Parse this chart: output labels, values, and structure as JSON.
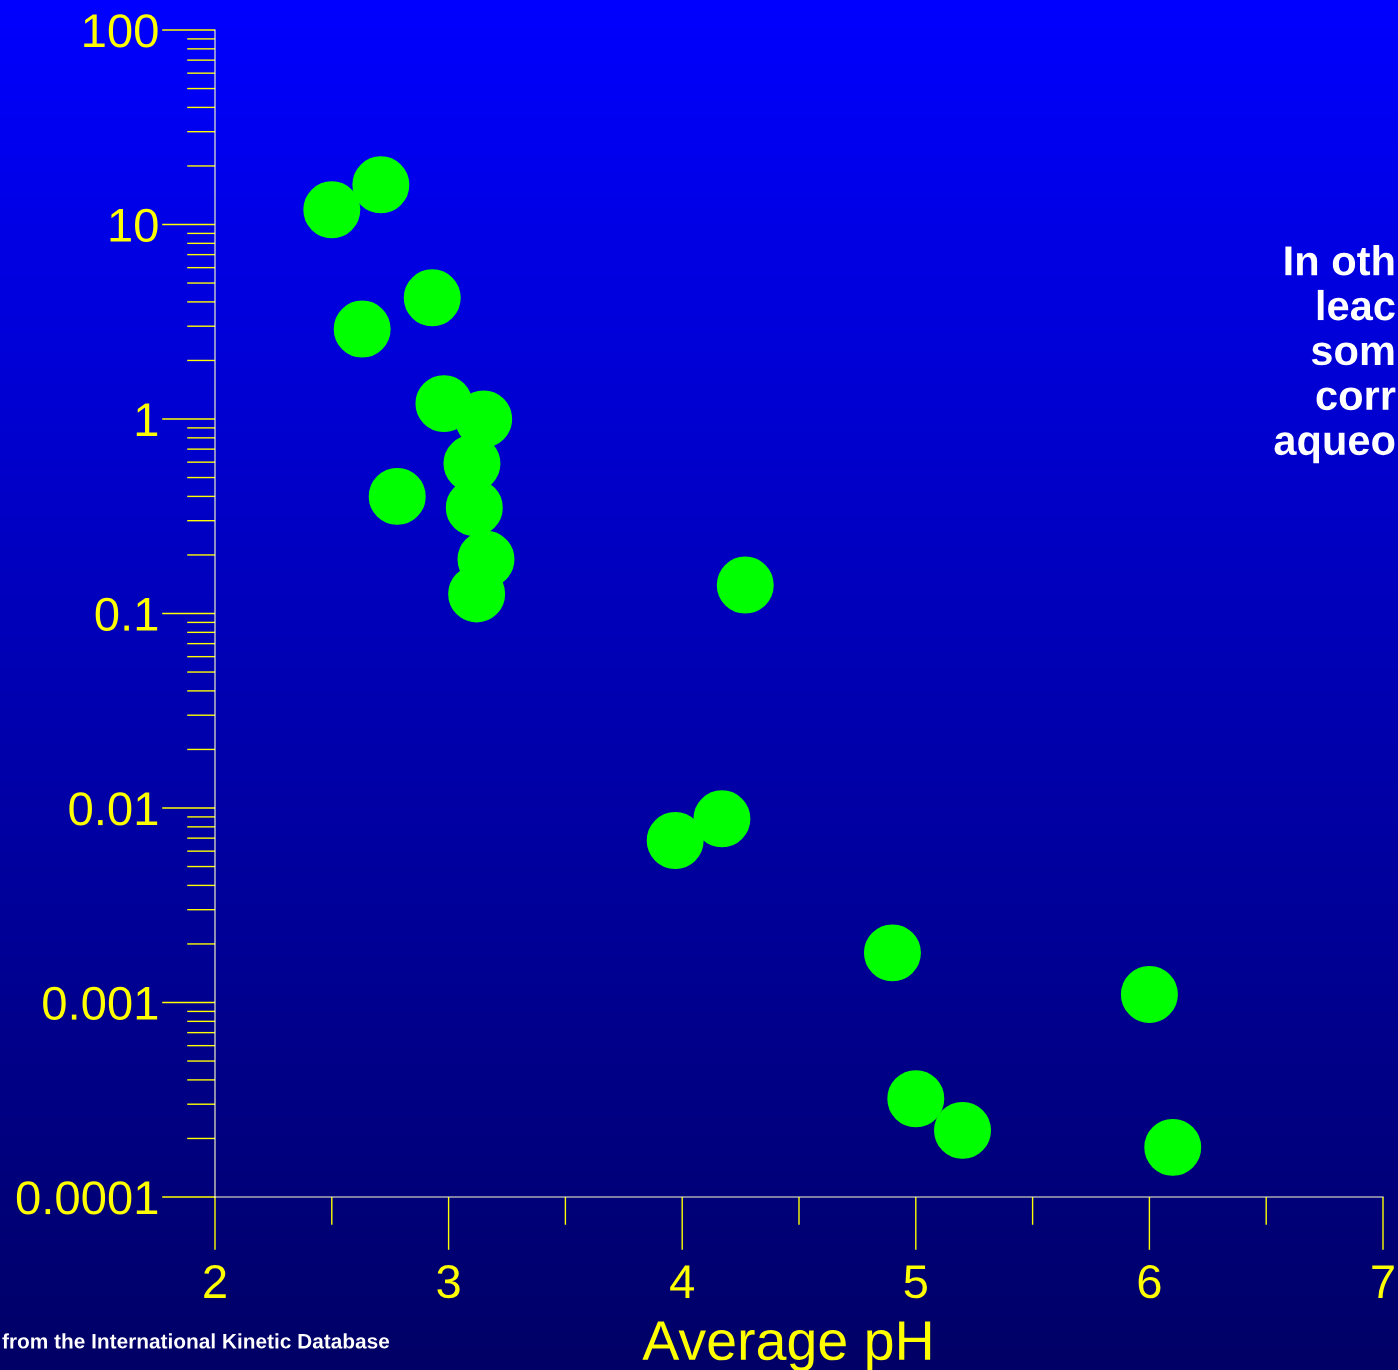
{
  "chart_data": {
    "type": "scatter",
    "xlabel": "Average pH",
    "x": [
      2.5,
      2.71,
      2.63,
      2.93,
      2.98,
      3.15,
      3.1,
      2.78,
      3.11,
      3.16,
      3.12,
      4.27,
      3.97,
      4.17,
      4.9,
      6.0,
      5.0,
      5.2,
      6.1
    ],
    "series": [
      {
        "color": "#00ff00",
        "values": [
          11.9,
          16,
          2.9,
          4.2,
          1.2,
          1.0,
          0.59,
          0.4,
          0.35,
          0.19,
          0.126,
          0.14,
          0.0068,
          0.0088,
          0.0018,
          0.0011,
          0.00032,
          0.00022,
          0.00018
        ]
      }
    ],
    "log": "y",
    "xlim": [
      2,
      7
    ],
    "xticks": [
      2,
      3,
      4,
      5,
      6,
      7
    ],
    "ylim": [
      0.0001,
      100
    ],
    "yticks": [
      0.0001,
      0.001,
      0.01,
      0.1,
      1,
      10,
      100
    ],
    "marker": "circle",
    "grid": false,
    "legend": false,
    "annotations": [
      "from the International Kinetic Database",
      "In oth\nleac\nsom\ncorr\naqueo"
    ]
  }
}
